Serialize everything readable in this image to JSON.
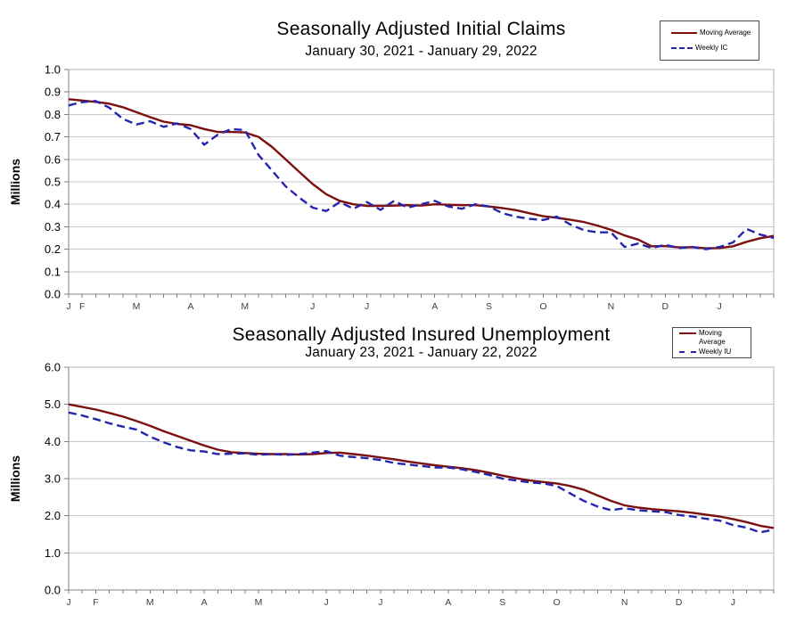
{
  "figure": {
    "background": "#ffffff",
    "grid_color": "#c9c9c9",
    "axis_color": "#808080",
    "border_color": "#b3b3b3",
    "tick_label_color": "#000000",
    "month_label_color": "#404040"
  },
  "chart_data": [
    {
      "type": "line",
      "title": "Seasonally Adjusted Initial Claims",
      "subtitle": "January 30, 2021 - January 29, 2022",
      "ylabel": "Millions",
      "xlabel": "",
      "ylim": [
        0.0,
        1.0
      ],
      "yticks": [
        "0.0",
        "0.1",
        "0.2",
        "0.3",
        "0.4",
        "0.5",
        "0.6",
        "0.7",
        "0.8",
        "0.9",
        "1.0"
      ],
      "weeks": 53,
      "grid": true,
      "legend_position": "top-right",
      "x_month_labels": [
        {
          "label": "J",
          "week": 0
        },
        {
          "label": "F",
          "week": 1
        },
        {
          "label": "M",
          "week": 5
        },
        {
          "label": "A",
          "week": 9
        },
        {
          "label": "M",
          "week": 13
        },
        {
          "label": "J",
          "week": 18
        },
        {
          "label": "J",
          "week": 22
        },
        {
          "label": "A",
          "week": 27
        },
        {
          "label": "S",
          "week": 31
        },
        {
          "label": "O",
          "week": 35
        },
        {
          "label": "N",
          "week": 40
        },
        {
          "label": "D",
          "week": 44
        },
        {
          "label": "J",
          "week": 48
        }
      ],
      "series": [
        {
          "name": "Moving Average",
          "color": "#7c0f0f",
          "style": "solid",
          "values": [
            0.868,
            0.862,
            0.856,
            0.848,
            0.832,
            0.81,
            0.788,
            0.768,
            0.758,
            0.752,
            0.735,
            0.722,
            0.722,
            0.72,
            0.7,
            0.655,
            0.6,
            0.545,
            0.49,
            0.445,
            0.415,
            0.4,
            0.393,
            0.393,
            0.394,
            0.396,
            0.394,
            0.4,
            0.398,
            0.396,
            0.396,
            0.39,
            0.383,
            0.374,
            0.36,
            0.347,
            0.34,
            0.331,
            0.321,
            0.305,
            0.286,
            0.261,
            0.243,
            0.213,
            0.214,
            0.208,
            0.209,
            0.204,
            0.205,
            0.213,
            0.233,
            0.249,
            0.259
          ]
        },
        {
          "name": "Weekly IC",
          "color": "#2424ad",
          "style": "dashed",
          "values": [
            0.84,
            0.855,
            0.86,
            0.83,
            0.78,
            0.755,
            0.77,
            0.745,
            0.76,
            0.735,
            0.665,
            0.71,
            0.735,
            0.73,
            0.62,
            0.55,
            0.48,
            0.43,
            0.385,
            0.37,
            0.41,
            0.38,
            0.41,
            0.375,
            0.415,
            0.385,
            0.4,
            0.415,
            0.39,
            0.38,
            0.4,
            0.39,
            0.36,
            0.345,
            0.335,
            0.33,
            0.345,
            0.31,
            0.285,
            0.275,
            0.275,
            0.21,
            0.225,
            0.205,
            0.22,
            0.205,
            0.21,
            0.2,
            0.21,
            0.23,
            0.29,
            0.265,
            0.25
          ]
        }
      ]
    },
    {
      "type": "line",
      "title": "Seasonally Adjusted Insured Unemployment",
      "subtitle": "January 23, 2021 - January 22, 2022",
      "ylabel": "Millions",
      "xlabel": "",
      "ylim": [
        0.0,
        6.0
      ],
      "yticks": [
        "0.0",
        "1.0",
        "2.0",
        "3.0",
        "4.0",
        "5.0",
        "6.0"
      ],
      "weeks": 53,
      "grid": true,
      "legend_position": "top-right",
      "x_month_labels": [
        {
          "label": "J",
          "week": 0
        },
        {
          "label": "F",
          "week": 2
        },
        {
          "label": "M",
          "week": 6
        },
        {
          "label": "A",
          "week": 10
        },
        {
          "label": "M",
          "week": 14
        },
        {
          "label": "J",
          "week": 19
        },
        {
          "label": "J",
          "week": 23
        },
        {
          "label": "A",
          "week": 28
        },
        {
          "label": "S",
          "week": 32
        },
        {
          "label": "O",
          "week": 36
        },
        {
          "label": "N",
          "week": 41
        },
        {
          "label": "D",
          "week": 45
        },
        {
          "label": "J",
          "week": 49
        }
      ],
      "series": [
        {
          "name": "Moving Average",
          "color": "#7c0f0f",
          "style": "solid",
          "values": [
            5.0,
            4.93,
            4.86,
            4.77,
            4.67,
            4.55,
            4.42,
            4.28,
            4.15,
            4.02,
            3.89,
            3.78,
            3.71,
            3.69,
            3.67,
            3.66,
            3.66,
            3.65,
            3.66,
            3.69,
            3.7,
            3.66,
            3.62,
            3.57,
            3.52,
            3.46,
            3.41,
            3.36,
            3.32,
            3.28,
            3.23,
            3.16,
            3.08,
            3.01,
            2.95,
            2.91,
            2.87,
            2.8,
            2.7,
            2.55,
            2.4,
            2.28,
            2.22,
            2.18,
            2.15,
            2.12,
            2.08,
            2.03,
            1.98,
            1.91,
            1.83,
            1.73,
            1.67
          ]
        },
        {
          "name": "Weekly IU",
          "color": "#2424ad",
          "style": "dashed",
          "values": [
            4.78,
            4.7,
            4.6,
            4.49,
            4.4,
            4.32,
            4.13,
            3.98,
            3.85,
            3.76,
            3.73,
            3.66,
            3.67,
            3.68,
            3.64,
            3.66,
            3.64,
            3.66,
            3.7,
            3.74,
            3.62,
            3.58,
            3.55,
            3.5,
            3.42,
            3.38,
            3.34,
            3.3,
            3.3,
            3.25,
            3.18,
            3.1,
            3.0,
            2.95,
            2.9,
            2.87,
            2.8,
            2.6,
            2.4,
            2.25,
            2.15,
            2.2,
            2.15,
            2.12,
            2.1,
            2.02,
            1.98,
            1.92,
            1.87,
            1.75,
            1.68,
            1.55,
            1.63
          ]
        }
      ]
    }
  ]
}
